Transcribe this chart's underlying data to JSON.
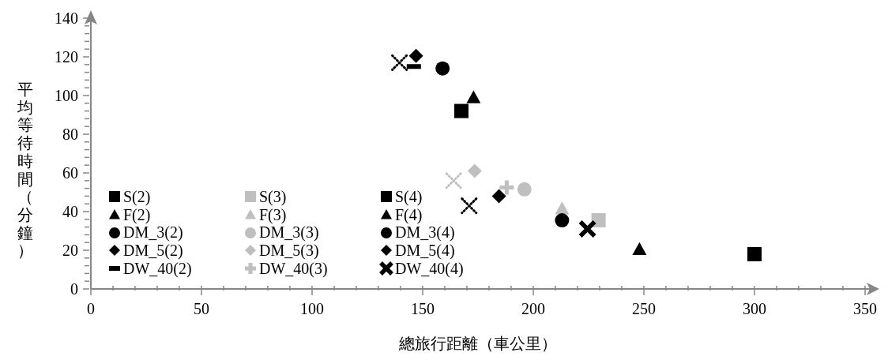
{
  "chart_data": {
    "type": "scatter",
    "xlabel": "總旅行距離（車公里）",
    "ylabel": "平均等待時間（分鐘）",
    "xlim": [
      0,
      350
    ],
    "ylim": [
      0,
      140
    ],
    "xticks": [
      0,
      {
        "value": 10,
        "label": null
      },
      {
        "value": 20,
        "label": null
      },
      {
        "value": 30,
        "label": null
      },
      {
        "value": 40,
        "label": null
      },
      50,
      {
        "value": 60,
        "label": null
      },
      {
        "value": 70,
        "label": null
      },
      {
        "value": 80,
        "label": null
      },
      {
        "value": 90,
        "label": null
      },
      100,
      {
        "value": 110,
        "label": null
      },
      {
        "value": 120,
        "label": null
      },
      {
        "value": 130,
        "label": null
      },
      {
        "value": 140,
        "label": null
      },
      150,
      {
        "value": 160,
        "label": null
      },
      {
        "value": 170,
        "label": null
      },
      {
        "value": 180,
        "label": null
      },
      {
        "value": 190,
        "label": null
      },
      200,
      {
        "value": 210,
        "label": null
      },
      {
        "value": 220,
        "label": null
      },
      {
        "value": 230,
        "label": null
      },
      {
        "value": 240,
        "label": null
      },
      250,
      {
        "value": 260,
        "label": null
      },
      {
        "value": 270,
        "label": null
      },
      {
        "value": 280,
        "label": null
      },
      {
        "value": 290,
        "label": null
      },
      300,
      {
        "value": 310,
        "label": null
      },
      {
        "value": 320,
        "label": null
      },
      {
        "value": 330,
        "label": null
      },
      {
        "value": 340,
        "label": null
      },
      350
    ],
    "yticks": [
      0,
      {
        "value": 4,
        "label": null
      },
      {
        "value": 8,
        "label": null
      },
      {
        "value": 12,
        "label": null
      },
      {
        "value": 16,
        "label": null
      },
      20,
      {
        "value": 24,
        "label": null
      },
      {
        "value": 28,
        "label": null
      },
      {
        "value": 32,
        "label": null
      },
      {
        "value": 36,
        "label": null
      },
      40,
      {
        "value": 44,
        "label": null
      },
      {
        "value": 48,
        "label": null
      },
      {
        "value": 52,
        "label": null
      },
      {
        "value": 56,
        "label": null
      },
      60,
      {
        "value": 64,
        "label": null
      },
      {
        "value": 68,
        "label": null
      },
      {
        "value": 72,
        "label": null
      },
      {
        "value": 76,
        "label": null
      },
      80,
      {
        "value": 84,
        "label": null
      },
      {
        "value": 88,
        "label": null
      },
      {
        "value": 92,
        "label": null
      },
      {
        "value": 96,
        "label": null
      },
      100,
      {
        "value": 104,
        "label": null
      },
      {
        "value": 108,
        "label": null
      },
      {
        "value": 112,
        "label": null
      },
      {
        "value": 116,
        "label": null
      },
      120,
      {
        "value": 124,
        "label": null
      },
      {
        "value": 128,
        "label": null
      },
      {
        "value": 132,
        "label": null
      },
      {
        "value": 136,
        "label": null
      },
      140
    ],
    "grid": false,
    "legend": "left",
    "series": [
      {
        "name": "S(2)",
        "color": "#000000",
        "marker": "square",
        "x": [
          167.5
        ],
        "values": [
          92
        ]
      },
      {
        "name": "F(2)",
        "color": "#000000",
        "marker": "triangle",
        "x": [
          173
        ],
        "values": [
          99
        ]
      },
      {
        "name": "DM_3(2)",
        "color": "#000000",
        "marker": "circle",
        "x": [
          159
        ],
        "values": [
          114
        ]
      },
      {
        "name": "DM_5(2)",
        "color": "#000000",
        "marker": "diamond",
        "x": [
          147
        ],
        "values": [
          120.5
        ]
      },
      {
        "name": "DW_40(2)",
        "color": "#000000",
        "x": [
          146
        ],
        "values": [
          115
        ]
      },
      {
        "name": "S(3)",
        "color": "#bfbfbf",
        "marker": "square",
        "x": [
          229.5
        ],
        "values": [
          35.5
        ]
      },
      {
        "name": "F(3)",
        "color": "#bfbfbf",
        "marker": "triangle",
        "x": [
          213
        ],
        "values": [
          41.5
        ]
      },
      {
        "name": "DM_3(3)",
        "color": "#bfbfbf",
        "marker": "circle",
        "x": [
          196
        ],
        "values": [
          51.5
        ]
      },
      {
        "name": "DM_5(3)",
        "color": "#bfbfbf",
        "marker": "diamond",
        "x": [
          173.5
        ],
        "values": [
          61
        ]
      },
      {
        "name": "DW_40(3)",
        "color": "#bfbfbf",
        "marker": "plus",
        "x": [
          188
        ],
        "values": [
          52.5
        ]
      },
      {
        "name": "S(4)",
        "color": "#000000",
        "marker": "square",
        "x": [
          300
        ],
        "values": [
          18
        ]
      },
      {
        "name": "F(4)",
        "color": "#000000",
        "marker": "triangle",
        "x": [
          248
        ],
        "values": [
          20.5
        ]
      },
      {
        "name": "DM_3(4)",
        "color": "#000000",
        "marker": "circle",
        "x": [
          213
        ],
        "values": [
          35.5
        ]
      },
      {
        "name": "DM_5(4)",
        "color": "#000000",
        "marker": "diamond",
        "x": [
          184.5
        ],
        "values": [
          48
        ]
      },
      {
        "name": "DW_40(4)",
        "color": "#000000",
        "marker": "cross",
        "x": [
          224.5
        ],
        "values": [
          31
        ]
      },
      {
        "color": "#000000",
        "marker": "cross",
        "line_style": "dotted",
        "x": [
          139.5
        ],
        "values": [
          117
        ]
      },
      {
        "color": "#bfbfbf",
        "marker": "cross",
        "line_style": "dotted",
        "x": [
          164
        ],
        "values": [
          56
        ]
      },
      {
        "color": "#000000",
        "marker": "cross",
        "line_style": "dotted",
        "x": [
          171
        ],
        "values": [
          43
        ]
      }
    ]
  }
}
